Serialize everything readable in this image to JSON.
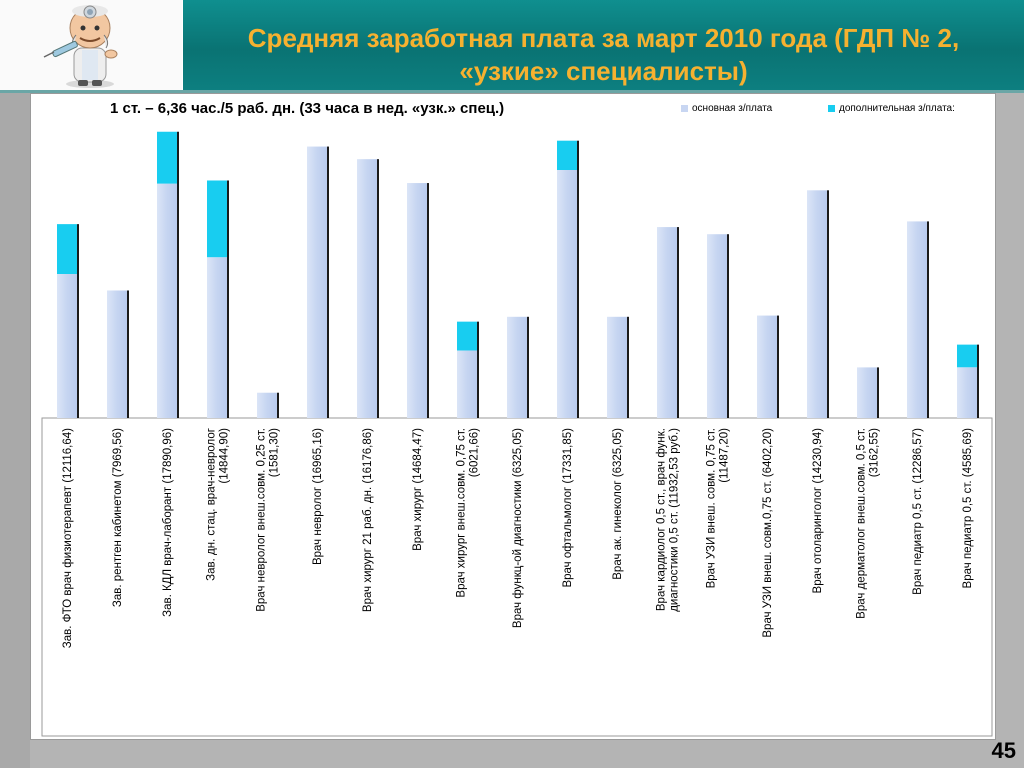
{
  "header": {
    "title_line1": "Средняя заработная плата за март 2010 года (ГДП № 2,",
    "title_line2": "«узкие» специалисты)"
  },
  "subtitle": "1 ст. – 6,36 час./5 раб. дн.  (33 часа в нед. «узк.» спец.)",
  "page_number": "45",
  "colors": {
    "title": "#f6b130",
    "base": "#c8d6f2",
    "extra": "#18cdf0",
    "teal": "#0a7b7b"
  },
  "chart_data": {
    "type": "bar",
    "stacked": true,
    "legend_position": "top-right",
    "grid": false,
    "ylim": [
      0,
      18000
    ],
    "categories": [
      "Зав. ФТО врач физиотерапевт (12116,64)",
      "Зав. рентген кабинетом (7969,56)",
      "Зав. КДЛ врач-лаборант (17890,96)",
      "Зав. дн. стац. врач-невролог (14844,90)",
      "Врач невролог внеш.совм. 0,25 ст. (1581,30)",
      "Врач невролог (16965,16)",
      "Врач хирург 21 раб. дн. (16176,86)",
      "Врач хирург (14684,47)",
      "Врач хирург внеш.совм. 0,75 ст. (6021,66)",
      "Врач функц-ой диагностики (6325,05)",
      "Врач офтальмолог (17331,85)",
      "Врач ак. гинеколог (6325,05)",
      "Врач кардиолог 0,5 ст., врач функ. диагностики 0,5 ст. (11932,53 руб.)",
      "Врач УЗИ внеш. совм. 0,75 ст. (11487,20)",
      "Врач УЗИ внеш. совм.0,75 ст. (6402,20)",
      "Врач отоларинголог (14230,94)",
      "Врач дерматолог внеш.совм. 0,5 ст. (3162,55)",
      "Врач педиатр 0,5 ст. (12286,57)",
      "Врач педиатр 0,5 ст. (4585,69)"
    ],
    "series": [
      {
        "name": "основная з/плата",
        "values": [
          9000,
          7970,
          14650,
          10050,
          1580,
          16965,
          16177,
          14684,
          4220,
          6325,
          15500,
          6325,
          11933,
          11487,
          6402,
          14231,
          3163,
          12287,
          3170
        ]
      },
      {
        "name": "дополнительная з/плата:",
        "values": [
          3117,
          0,
          3241,
          4795,
          0,
          0,
          0,
          0,
          1802,
          0,
          1832,
          0,
          0,
          0,
          0,
          0,
          0,
          0,
          1416
        ]
      }
    ]
  }
}
